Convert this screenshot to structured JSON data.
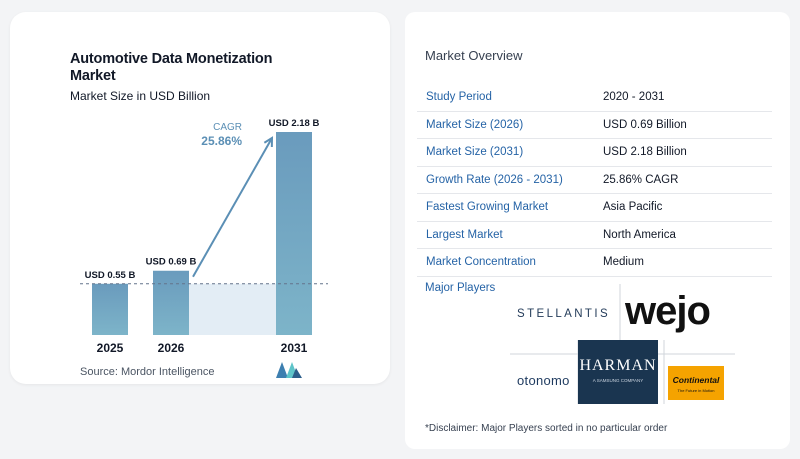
{
  "chart_data": {
    "type": "bar",
    "title": "Automotive Data Monetization Market",
    "subtitle": "Market Size in USD Billion",
    "categories": [
      "2025",
      "2026",
      "2031"
    ],
    "values": [
      0.55,
      0.69,
      2.18
    ],
    "data_labels": [
      "USD 0.55 B",
      "USD 0.69 B",
      "USD 2.18 B"
    ],
    "annotation": {
      "label": "CAGR",
      "value": "25.86%"
    },
    "baseline_reference": 0.55,
    "ylim": [
      0,
      2.18
    ],
    "grid": false,
    "bar_color": "#6f9fbf",
    "accent_color": "#5b8fb5"
  },
  "source": "Source:  Mordor Intelligence",
  "overview": {
    "title": "Market Overview",
    "rows": [
      {
        "key": "Study Period",
        "value": "2020 - 2031"
      },
      {
        "key": "Market Size (2026)",
        "value": "USD 0.69 Billion"
      },
      {
        "key": "Market Size (2031)",
        "value": "USD 2.18 Billion"
      },
      {
        "key": "Growth Rate (2026 - 2031)",
        "value": "25.86% CAGR"
      },
      {
        "key": "Fastest Growing Market",
        "value": "Asia Pacific"
      },
      {
        "key": "Largest Market",
        "value": "North America"
      },
      {
        "key": "Market Concentration",
        "value": "Medium"
      }
    ]
  },
  "players": {
    "label": "Major Players",
    "logos": {
      "stellantis": "STELLANTIS",
      "wejo": "wejo",
      "otonomo": "otonomo",
      "harman": "HARMAN",
      "harman_tag": "A SAMSUNG COMPANY",
      "continental": "Continental",
      "continental_tag": "The Future in Motion"
    }
  },
  "disclaimer": "*Disclaimer: Major Players sorted in no particular order"
}
